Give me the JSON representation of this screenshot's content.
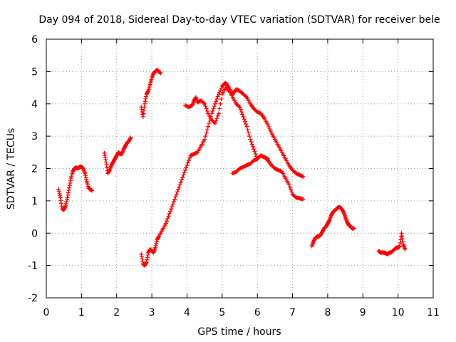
{
  "chart_data": {
    "type": "scatter",
    "title": "Day 094 of 2018, Sidereal Day-to-day VTEC variation (SDTVAR) for receiver bele",
    "xlabel": "GPS time / hours",
    "ylabel": "SDTVAR / TECUs",
    "xlim": [
      0,
      11
    ],
    "ylim": [
      -2,
      6
    ],
    "xticks": [
      "0",
      "1",
      "2",
      "3",
      "4",
      "5",
      "6",
      "7",
      "8",
      "9",
      "10",
      "11"
    ],
    "yticks": [
      "-2",
      "-1",
      "0",
      "1",
      "2",
      "3",
      "4",
      "5",
      "6"
    ],
    "grid": true,
    "marker": "+",
    "color": "#ff0000",
    "segments": [
      {
        "name": "arc-a",
        "x": [
          0.35,
          0.4,
          0.45,
          0.5,
          0.55,
          0.6,
          0.65,
          0.7,
          0.75,
          0.8,
          0.85,
          0.9,
          0.95,
          1.0,
          1.05,
          1.1,
          1.15,
          1.2,
          1.25,
          1.3
        ],
        "y": [
          1.35,
          1.1,
          0.75,
          0.72,
          0.85,
          1.1,
          1.4,
          1.7,
          1.9,
          2.0,
          2.03,
          2.0,
          2.05,
          2.05,
          2.0,
          1.85,
          1.6,
          1.4,
          1.35,
          1.32
        ]
      },
      {
        "name": "arc-b",
        "x": [
          1.65,
          1.7,
          1.75,
          1.8,
          1.85,
          1.9,
          1.95,
          2.0,
          2.05,
          2.1,
          2.15,
          2.2,
          2.25,
          2.3,
          2.35,
          2.4
        ],
        "y": [
          2.48,
          2.2,
          1.85,
          1.95,
          2.1,
          2.2,
          2.3,
          2.4,
          2.5,
          2.45,
          2.45,
          2.6,
          2.7,
          2.8,
          2.85,
          2.95
        ]
      },
      {
        "name": "arc-c",
        "x": [
          2.7,
          2.75,
          2.8,
          2.85,
          2.9,
          2.95,
          3.0,
          3.05,
          3.1,
          3.15,
          3.2,
          3.25
        ],
        "y": [
          3.9,
          3.6,
          4.0,
          4.3,
          4.4,
          4.6,
          4.8,
          4.95,
          5.0,
          5.05,
          5.0,
          4.95
        ]
      },
      {
        "name": "arc-d",
        "x": [
          2.7,
          2.75,
          2.8,
          2.85,
          2.9,
          2.95,
          3.0,
          3.05,
          3.1,
          3.15,
          3.2,
          3.3,
          3.4,
          3.5,
          3.6,
          3.7,
          3.8,
          3.9,
          4.0,
          4.1,
          4.2,
          4.3,
          4.4,
          4.5,
          4.6,
          4.7,
          4.8,
          4.9,
          5.0,
          5.05,
          5.1,
          5.2,
          5.3,
          5.4,
          5.5,
          5.6,
          5.7,
          5.8,
          5.9,
          6.0,
          6.1,
          6.2,
          6.3,
          6.4,
          6.5,
          6.6,
          6.7,
          6.8,
          6.9,
          7.0,
          7.1,
          7.2,
          7.3
        ],
        "y": [
          -0.65,
          -0.95,
          -1.0,
          -0.9,
          -0.6,
          -0.5,
          -0.55,
          -0.6,
          -0.45,
          -0.2,
          -0.1,
          0.1,
          0.3,
          0.6,
          0.9,
          1.2,
          1.5,
          1.8,
          2.1,
          2.4,
          2.45,
          2.5,
          2.7,
          2.9,
          3.3,
          3.7,
          4.0,
          4.3,
          4.55,
          4.6,
          4.65,
          4.5,
          4.3,
          4.45,
          4.4,
          4.3,
          4.2,
          4.0,
          3.85,
          3.75,
          3.7,
          3.55,
          3.35,
          3.1,
          2.9,
          2.7,
          2.5,
          2.3,
          2.1,
          1.95,
          1.85,
          1.8,
          1.75
        ]
      },
      {
        "name": "arc-e",
        "x": [
          3.95,
          4.05,
          4.15,
          4.2,
          4.25,
          4.3,
          4.4,
          4.5,
          4.6,
          4.7,
          4.8,
          4.9,
          5.0,
          5.1,
          5.2,
          5.3,
          5.4,
          5.5,
          5.6,
          5.7,
          5.8,
          5.9,
          6.0,
          6.1,
          6.2,
          6.3,
          6.4,
          6.5,
          6.6,
          6.7,
          6.8,
          6.9,
          7.0,
          7.1,
          7.2,
          7.3
        ],
        "y": [
          3.95,
          3.9,
          3.95,
          4.1,
          4.2,
          4.05,
          4.1,
          4.0,
          3.7,
          3.5,
          3.4,
          3.7,
          4.3,
          4.5,
          4.4,
          4.2,
          4.0,
          3.9,
          3.6,
          3.3,
          2.9,
          2.6,
          2.3,
          2.4,
          2.35,
          2.25,
          2.1,
          2.0,
          1.95,
          1.9,
          1.7,
          1.5,
          1.2,
          1.1,
          1.08,
          1.05
        ]
      },
      {
        "name": "arc-f",
        "x": [
          5.3,
          5.4,
          5.5,
          5.6,
          5.7,
          5.8,
          5.9,
          6.0,
          6.1,
          6.2,
          6.3
        ],
        "y": [
          1.85,
          1.9,
          2.0,
          2.05,
          2.1,
          2.15,
          2.25,
          2.3,
          2.4,
          2.35,
          2.3
        ]
      },
      {
        "name": "arc-g",
        "x": [
          7.55,
          7.6,
          7.65,
          7.7,
          7.75,
          7.8,
          7.85,
          7.9,
          7.95,
          8.0,
          8.05,
          8.1,
          8.15,
          8.2,
          8.25,
          8.3,
          8.35,
          8.4,
          8.45,
          8.5,
          8.55,
          8.6,
          8.65,
          8.7,
          8.75
        ],
        "y": [
          -0.4,
          -0.25,
          -0.15,
          -0.1,
          -0.1,
          -0.05,
          0.05,
          0.15,
          0.2,
          0.3,
          0.4,
          0.55,
          0.65,
          0.7,
          0.75,
          0.8,
          0.8,
          0.75,
          0.65,
          0.5,
          0.35,
          0.25,
          0.2,
          0.15,
          0.15
        ]
      },
      {
        "name": "arc-h",
        "x": [
          9.45,
          9.5,
          9.55,
          9.6,
          9.65,
          9.7,
          9.75,
          9.8,
          9.85,
          9.9,
          9.95,
          10.0,
          10.05,
          10.1,
          10.15,
          10.2
        ],
        "y": [
          -0.55,
          -0.6,
          -0.6,
          -0.6,
          -0.62,
          -0.65,
          -0.6,
          -0.6,
          -0.55,
          -0.5,
          -0.45,
          -0.45,
          -0.4,
          0.0,
          -0.35,
          -0.5
        ]
      }
    ]
  }
}
